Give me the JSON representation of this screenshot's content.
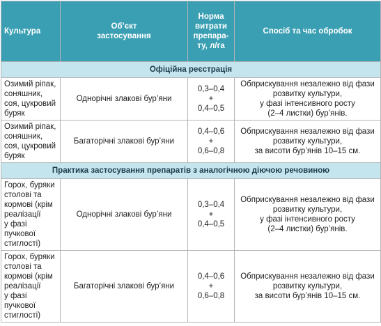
{
  "header": [
    [
      "Культура"
    ],
    [
      "Об’єкт",
      "застосування"
    ],
    [
      "Норма",
      "витрати",
      "препара-",
      "ту, л/га"
    ],
    [
      "Спосіб та час обробок"
    ]
  ],
  "sections": [
    {
      "title": "Офіційна реєстрація",
      "rows": [
        [
          [
            "Озимий ріпак,",
            "соняшник,",
            "соя, цукровий",
            "буряк"
          ],
          [
            "Однорічні злакові бур’яни"
          ],
          [
            "0,3–0,4",
            "+",
            "0,4–0,5"
          ],
          [
            "Обприскування незалежно від фази",
            "розвитку культури,",
            "у фазі інтенсивного росту",
            "(2–4 листки) бур’янів."
          ]
        ],
        [
          [
            "Озимий ріпак,",
            "соняшник,",
            "соя, цукровий",
            "буряк"
          ],
          [
            "Багаторічні злакові бур’яни"
          ],
          [
            "0,4–0,6",
            "+",
            "0,6–0,8"
          ],
          [
            "Обприскування незалежно від фази",
            "розвитку культури,",
            "за висоти бур’янів 10–15 см."
          ]
        ]
      ]
    },
    {
      "title": "Практика застосування препаратів з аналогічною діючою речовиною",
      "rows": [
        [
          [
            "Горох, буряки",
            "столові та",
            "кормові (крім",
            "реалізації",
            "у фазі",
            "пучкової",
            "стиглості)"
          ],
          [
            "Однорічні злакові бур’яни"
          ],
          [
            "0,3–0,4",
            "+",
            "0,4–0,5"
          ],
          [
            "Обприскування незалежно від фази",
            "розвитку культури,",
            "у фазі інтенсивного росту",
            "(2–4 листки) бур’янів."
          ]
        ],
        [
          [
            "Горох, буряки",
            "столові та",
            "кормові (крім",
            "реалізації",
            "у фазі",
            "пучкової",
            "стиглості)"
          ],
          [
            "Багаторічні злакові бур’яни"
          ],
          [
            "0,4–0,6",
            "+",
            "0,6–0,8"
          ],
          [
            "Обприскування незалежно від фази",
            "розвитку культури,",
            "за висоти бур’янів 10–15 см."
          ]
        ]
      ]
    }
  ]
}
